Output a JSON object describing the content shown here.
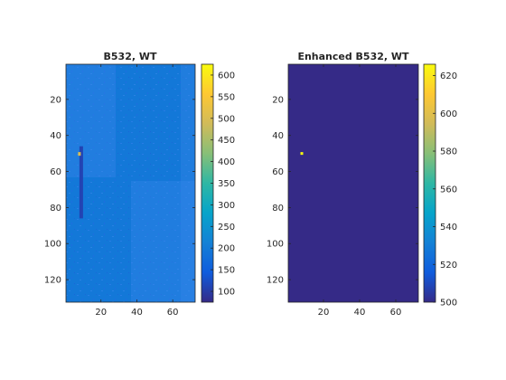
{
  "chart_data": [
    {
      "type": "heatmap",
      "title": "B532, WT",
      "xlabel": "",
      "ylabel": "",
      "xlim": [
        0.5,
        72.5
      ],
      "ylim": [
        0.5,
        132.5
      ],
      "y_direction": "reverse",
      "xticks": [
        20,
        40,
        60
      ],
      "yticks": [
        20,
        40,
        60,
        80,
        100,
        120
      ],
      "colormap": "parula",
      "clim": [
        75,
        625
      ],
      "colorbar_ticks": [
        100,
        150,
        200,
        250,
        300,
        350,
        400,
        450,
        500,
        550,
        600
      ],
      "background_value": 195,
      "features": [
        {
          "kind": "hotspot",
          "x": 8,
          "y": 50,
          "value": 500
        },
        {
          "kind": "dark_streak",
          "x": 9,
          "y_from": 46,
          "y_to": 86,
          "value": 110
        }
      ]
    },
    {
      "type": "heatmap",
      "title": "Enhanced B532, WT",
      "xlabel": "",
      "ylabel": "",
      "xlim": [
        0.5,
        72.5
      ],
      "ylim": [
        0.5,
        132.5
      ],
      "y_direction": "reverse",
      "xticks": [
        20,
        40,
        60
      ],
      "yticks": [
        20,
        40,
        60,
        80,
        100,
        120
      ],
      "colormap": "parula",
      "clim": [
        500,
        626
      ],
      "colorbar_ticks": [
        500,
        520,
        540,
        560,
        580,
        600,
        620
      ],
      "background_value": 500,
      "features": [
        {
          "kind": "hotspot",
          "x": 8,
          "y": 50,
          "value": 626
        }
      ]
    }
  ]
}
